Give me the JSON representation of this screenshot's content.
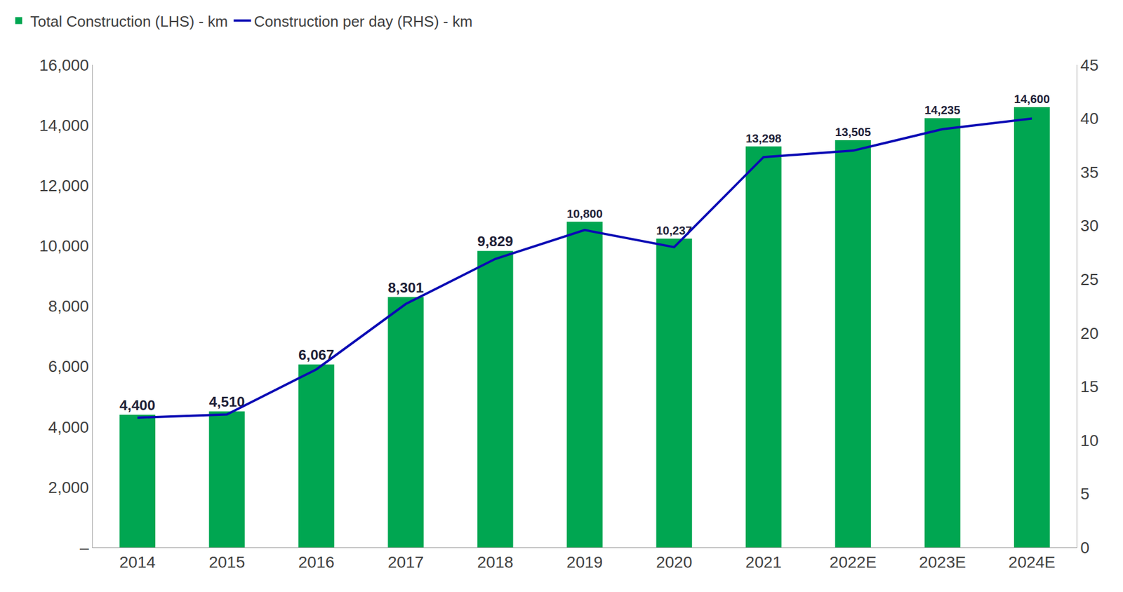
{
  "chart_data": {
    "type": "bar",
    "categories": [
      "2014",
      "2015",
      "2016",
      "2017",
      "2018",
      "2019",
      "2020",
      "2021",
      "2022E",
      "2023E",
      "2024E"
    ],
    "series": [
      {
        "name": "Total Construction (LHS) - km",
        "type": "bar",
        "color": "#00a651",
        "values": [
          4400,
          4510,
          6067,
          8301,
          9829,
          10800,
          10237,
          13298,
          13505,
          14235,
          14600
        ],
        "value_labels": [
          "4,400",
          "4,510",
          "6,067",
          "8,301",
          "9,829",
          "10,800",
          "10,237",
          "13,298",
          "13,505",
          "14,235",
          "14,600"
        ]
      },
      {
        "name": "Construction per day (RHS) - km",
        "type": "line",
        "color": "#0a0ab4",
        "axis": "y2",
        "values": [
          12.1,
          12.4,
          16.6,
          22.7,
          26.9,
          29.6,
          28.0,
          36.4,
          37.0,
          39.0,
          40.0
        ]
      }
    ],
    "ylim": [
      0,
      16000
    ],
    "yticks": [
      {
        "value": 0,
        "label": "–"
      },
      {
        "value": 2000,
        "label": "2,000"
      },
      {
        "value": 4000,
        "label": "4,000"
      },
      {
        "value": 6000,
        "label": "6,000"
      },
      {
        "value": 8000,
        "label": "8,000"
      },
      {
        "value": 10000,
        "label": "10,000"
      },
      {
        "value": 12000,
        "label": "12,000"
      },
      {
        "value": 14000,
        "label": "14,000"
      },
      {
        "value": 16000,
        "label": "16,000"
      }
    ],
    "y2lim": [
      0,
      45
    ],
    "y2ticks": [
      0,
      5,
      10,
      15,
      20,
      25,
      30,
      35,
      40,
      45
    ],
    "grid": false,
    "legend": "top left",
    "data_labels": true
  }
}
